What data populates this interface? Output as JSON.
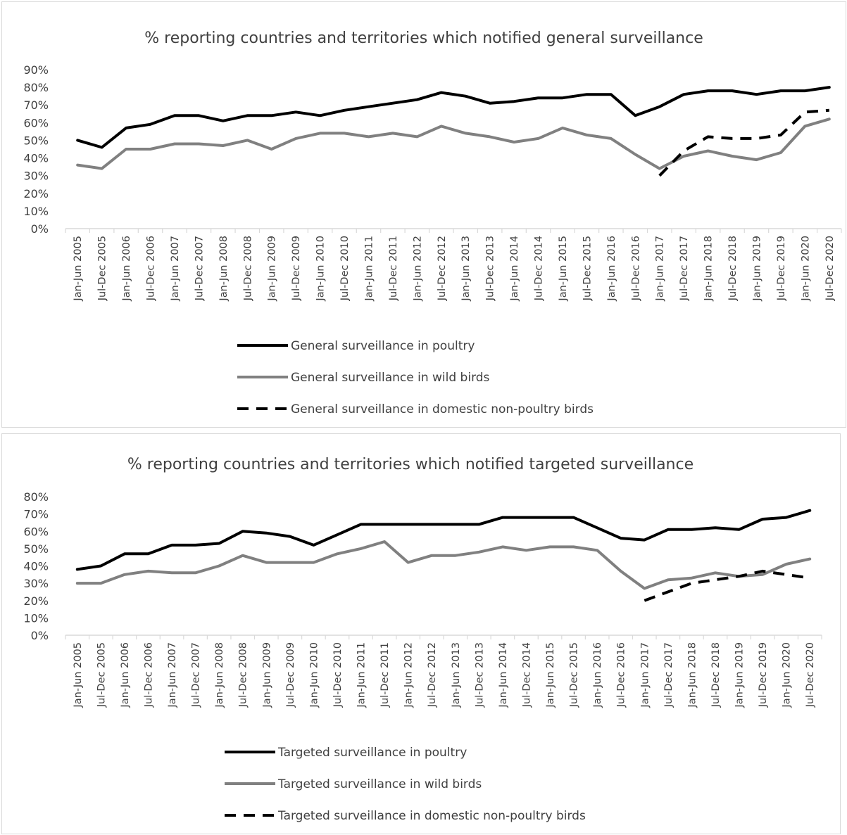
{
  "chart_data": [
    {
      "type": "line",
      "title": "% reporting countries and territories which notified general surveillance",
      "xlabel": "",
      "ylabel": "",
      "ylim": [
        0,
        90
      ],
      "yticks": [
        "0%",
        "10%",
        "20%",
        "30%",
        "40%",
        "50%",
        "60%",
        "70%",
        "80%",
        "90%"
      ],
      "legend_position": "bottom",
      "grid": false,
      "categories": [
        "Jan-Jun 2005",
        "Jul-Dec 2005",
        "Jan-Jun 2006",
        "Jul-Dec 2006",
        "Jan-Jun 2007",
        "Jul-Dec 2007",
        "Jan-Jun 2008",
        "Jul-Dec 2008",
        "Jan-Jun 2009",
        "Jul-Dec 2009",
        "Jan-Jun 2010",
        "Jul-Dec 2010",
        "Jan-Jun 2011",
        "Jul-Dec 2011",
        "Jan-Jun 2012",
        "Jul-Dec 2012",
        "Jan-Jun 2013",
        "Jul-Dec 2013",
        "Jan-Jun 2014",
        "Jul-Dec 2014",
        "Jan-Jun 2015",
        "Jul-Dec 2015",
        "Jan-Jun 2016",
        "Jul-Dec 2016",
        "Jan-Jun 2017",
        "Jul-Dec 2017",
        "Jan-Jun 2018",
        "Jul-Dec 2018",
        "Jan-Jun 2019",
        "Jul-Dec 2019",
        "Jan-Jun 2020",
        "Jul-Dec 2020"
      ],
      "series": [
        {
          "name": "General surveillance in poultry",
          "color": "#000000",
          "style": "solid",
          "values": [
            50,
            46,
            57,
            59,
            64,
            64,
            61,
            64,
            64,
            66,
            64,
            67,
            69,
            71,
            73,
            77,
            75,
            71,
            72,
            74,
            74,
            76,
            76,
            64,
            69,
            76,
            78,
            78,
            76,
            78,
            78,
            80
          ]
        },
        {
          "name": "General surveillance in wild birds",
          "color": "#808080",
          "style": "solid",
          "values": [
            36,
            34,
            45,
            45,
            48,
            48,
            47,
            50,
            45,
            51,
            54,
            54,
            52,
            54,
            52,
            58,
            54,
            52,
            49,
            51,
            57,
            53,
            51,
            42,
            34,
            41,
            44,
            41,
            39,
            43,
            58,
            62
          ]
        },
        {
          "name": "General surveillance in domestic non-poultry birds",
          "color": "#000000",
          "style": "dashed",
          "values": [
            null,
            null,
            null,
            null,
            null,
            null,
            null,
            null,
            null,
            null,
            null,
            null,
            null,
            null,
            null,
            null,
            null,
            null,
            null,
            null,
            null,
            null,
            null,
            null,
            30,
            44,
            52,
            51,
            51,
            53,
            66,
            67
          ]
        }
      ]
    },
    {
      "type": "line",
      "title": "% reporting countries and territories which notified targeted surveillance",
      "xlabel": "",
      "ylabel": "",
      "ylim": [
        0,
        80
      ],
      "yticks": [
        "0%",
        "10%",
        "20%",
        "30%",
        "40%",
        "50%",
        "60%",
        "70%",
        "80%"
      ],
      "legend_position": "bottom",
      "grid": false,
      "categories": [
        "Jan-Jun 2005",
        "Jul-Dec 2005",
        "Jan-Jun 2006",
        "Jul-Dec 2006",
        "Jan-Jun 2007",
        "Jul-Dec 2007",
        "Jan-Jun 2008",
        "Jul-Dec 2008",
        "Jan-Jun 2009",
        "Jul-Dec 2009",
        "Jan-Jun 2010",
        "Jul-Dec 2010",
        "Jan-Jun 2011",
        "Jul-Dec 2011",
        "Jan-Jun 2012",
        "Jul-Dec 2012",
        "Jan-Jun 2013",
        "Jul-Dec 2013",
        "Jan-Jun 2014",
        "Jul-Dec 2014",
        "Jan-Jun 2015",
        "Jul-Dec 2015",
        "Jan-Jun 2016",
        "Jul-Dec 2016",
        "Jan-Jun 2017",
        "Jul-Dec 2017",
        "Jan-Jun 2018",
        "Jul-Dec 2018",
        "Jan-Jun 2019",
        "Jul-Dec 2019",
        "Jan-Jun 2020",
        "Jul-Dec 2020"
      ],
      "series": [
        {
          "name": "Targeted surveillance in poultry",
          "color": "#000000",
          "style": "solid",
          "values": [
            38,
            40,
            47,
            47,
            52,
            52,
            53,
            60,
            59,
            57,
            52,
            58,
            64,
            64,
            64,
            64,
            64,
            64,
            68,
            68,
            68,
            68,
            62,
            56,
            55,
            61,
            61,
            62,
            61,
            67,
            68,
            72
          ]
        },
        {
          "name": "Targeted surveillance in wild birds",
          "color": "#808080",
          "style": "solid",
          "values": [
            30,
            30,
            35,
            37,
            36,
            36,
            40,
            46,
            42,
            42,
            42,
            47,
            50,
            54,
            42,
            46,
            46,
            48,
            51,
            49,
            51,
            51,
            49,
            37,
            27,
            32,
            33,
            36,
            34,
            35,
            41,
            44
          ]
        },
        {
          "name": "Targeted surveillance in domestic non-poultry birds",
          "color": "#000000",
          "style": "dashed",
          "values": [
            null,
            null,
            null,
            null,
            null,
            null,
            null,
            null,
            null,
            null,
            null,
            null,
            null,
            null,
            null,
            null,
            null,
            null,
            null,
            null,
            null,
            null,
            null,
            null,
            20,
            25,
            30,
            32,
            34,
            37,
            35,
            33
          ]
        }
      ]
    }
  ]
}
